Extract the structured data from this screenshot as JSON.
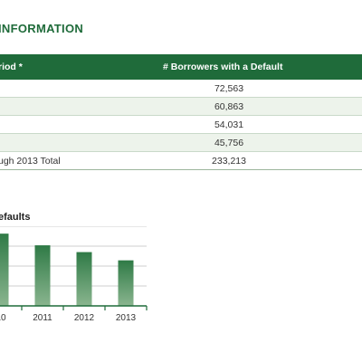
{
  "section_title": "INFORMATION",
  "table": {
    "headers": [
      "riod *",
      "# Borrowers with a Default"
    ],
    "rows": [
      {
        "period": "",
        "value": "72,563"
      },
      {
        "period": "",
        "value": "60,863"
      },
      {
        "period": "",
        "value": "54,031"
      },
      {
        "period": "",
        "value": "45,756"
      },
      {
        "period": "ugh 2013 Total",
        "value": "233,213"
      }
    ]
  },
  "colors": {
    "brand_green": "#1f6b3a",
    "row_alt": "#edf3eb",
    "bar_top": "#2f7a46",
    "bar_bottom": "#8ab58f"
  },
  "chart_data": {
    "type": "bar",
    "title": "efaults",
    "categories": [
      "10",
      "2011",
      "2012",
      "2013"
    ],
    "values": [
      72563,
      60863,
      54031,
      45756
    ],
    "ylim": [
      0,
      80000
    ],
    "grid": true
  }
}
